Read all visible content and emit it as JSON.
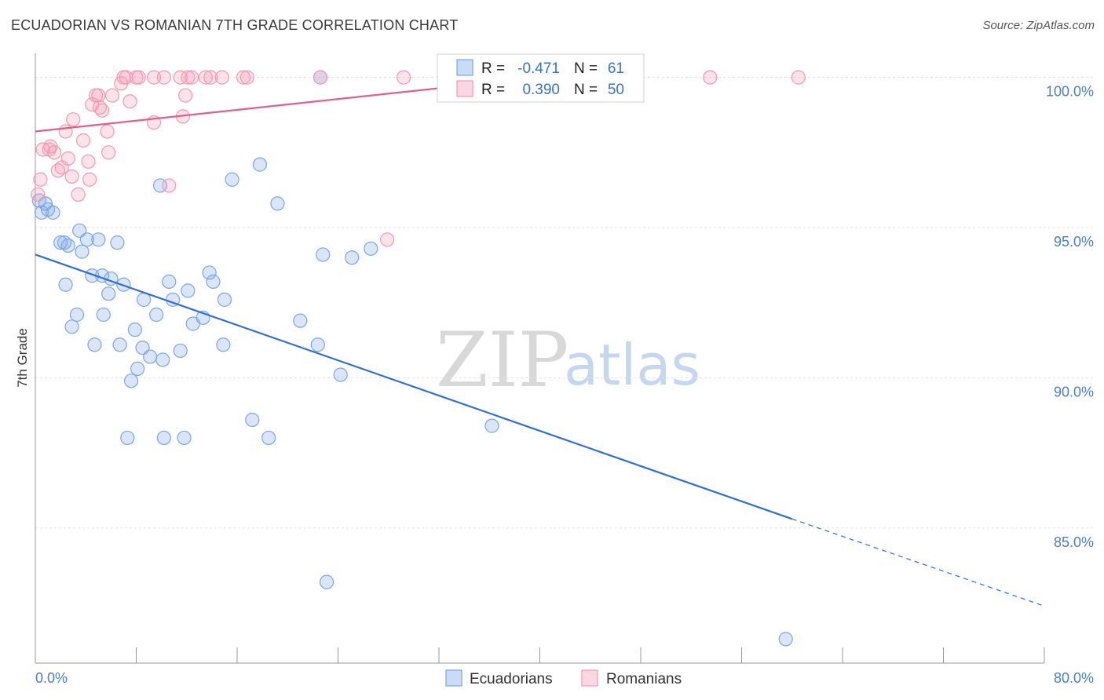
{
  "header": {
    "title": "ECUADORIAN VS ROMANIAN 7TH GRADE CORRELATION CHART",
    "source": "Source: ZipAtlas.com"
  },
  "chart_data": {
    "type": "scatter",
    "ylabel": "7th Grade",
    "xlim": [
      0,
      80
    ],
    "ylim": [
      80.5,
      100.8
    ],
    "x_tick_labels": [
      "0.0%",
      "80.0%"
    ],
    "y_ticks": [
      {
        "value": 100,
        "label": "100.0%"
      },
      {
        "value": 95,
        "label": "95.0%"
      },
      {
        "value": 90,
        "label": "90.0%"
      },
      {
        "value": 85,
        "label": "85.0%"
      }
    ],
    "grid": true,
    "watermark": {
      "zip": "ZIP",
      "atlas": "atlas"
    },
    "legend": {
      "r_label": "R =",
      "n_label": "N =",
      "entries": [
        {
          "r": "-0.471",
          "n": "61",
          "color": "#7aa7e6"
        },
        {
          "r": "0.390",
          "n": "50",
          "color": "#f29ab5"
        }
      ]
    },
    "series": [
      {
        "name": "Ecuadorians",
        "color": "#7aa7e6",
        "line_color": "#2f6fd1",
        "trend": {
          "x0": 0,
          "y0": 94.1,
          "x1": 60,
          "y1": 85.3,
          "dash_to_x": 80,
          "dash_to_y": 82.4
        },
        "points": [
          [
            0.3,
            95.9
          ],
          [
            0.5,
            95.5
          ],
          [
            1.0,
            95.6
          ],
          [
            1.4,
            95.5
          ],
          [
            0.8,
            95.8
          ],
          [
            2.0,
            94.5
          ],
          [
            2.6,
            94.4
          ],
          [
            3.5,
            94.9
          ],
          [
            3.7,
            94.2
          ],
          [
            4.1,
            94.6
          ],
          [
            5.0,
            94.6
          ],
          [
            6.5,
            94.5
          ],
          [
            2.3,
            94.5
          ],
          [
            2.4,
            93.1
          ],
          [
            4.5,
            93.4
          ],
          [
            5.3,
            93.4
          ],
          [
            6.0,
            93.3
          ],
          [
            7.0,
            93.1
          ],
          [
            5.8,
            92.8
          ],
          [
            3.3,
            92.1
          ],
          [
            2.9,
            91.7
          ],
          [
            5.4,
            92.1
          ],
          [
            8.6,
            92.6
          ],
          [
            9.6,
            92.1
          ],
          [
            10.6,
            93.2
          ],
          [
            10.9,
            92.6
          ],
          [
            12.1,
            92.9
          ],
          [
            13.8,
            93.5
          ],
          [
            14.1,
            93.2
          ],
          [
            15.0,
            92.6
          ],
          [
            12.5,
            91.8
          ],
          [
            13.3,
            92.0
          ],
          [
            4.7,
            91.1
          ],
          [
            6.7,
            91.1
          ],
          [
            7.9,
            91.6
          ],
          [
            8.5,
            91.0
          ],
          [
            11.5,
            90.9
          ],
          [
            14.9,
            91.1
          ],
          [
            9.1,
            90.7
          ],
          [
            10.1,
            90.6
          ],
          [
            8.1,
            90.3
          ],
          [
            7.6,
            89.9
          ],
          [
            21.0,
            91.9
          ],
          [
            22.4,
            91.1
          ],
          [
            24.2,
            90.1
          ],
          [
            17.2,
            88.6
          ],
          [
            18.5,
            88.0
          ],
          [
            7.3,
            88.0
          ],
          [
            10.2,
            88.0
          ],
          [
            11.8,
            88.0
          ],
          [
            36.2,
            88.4
          ],
          [
            9.9,
            96.4
          ],
          [
            15.6,
            96.6
          ],
          [
            17.8,
            97.1
          ],
          [
            19.2,
            95.8
          ],
          [
            22.8,
            94.1
          ],
          [
            25.1,
            94.0
          ],
          [
            26.6,
            94.3
          ],
          [
            22.6,
            100.0
          ],
          [
            23.1,
            83.2
          ],
          [
            59.5,
            81.3
          ]
        ]
      },
      {
        "name": "Romanians",
        "color": "#f29ab5",
        "line_color": "#e0608c",
        "trend": {
          "x0": 0,
          "y0": 98.2,
          "x1": 40,
          "y1": 100.0
        },
        "points": [
          [
            0.2,
            96.1
          ],
          [
            0.4,
            96.6
          ],
          [
            0.6,
            97.6
          ],
          [
            1.1,
            97.6
          ],
          [
            1.5,
            97.5
          ],
          [
            1.2,
            97.7
          ],
          [
            1.8,
            96.9
          ],
          [
            2.1,
            97.0
          ],
          [
            2.6,
            97.3
          ],
          [
            2.9,
            96.7
          ],
          [
            3.4,
            96.1
          ],
          [
            4.2,
            97.2
          ],
          [
            4.3,
            96.6
          ],
          [
            5.8,
            97.5
          ],
          [
            3.0,
            98.6
          ],
          [
            2.4,
            98.2
          ],
          [
            3.8,
            97.9
          ],
          [
            5.7,
            98.2
          ],
          [
            4.5,
            99.1
          ],
          [
            4.8,
            99.4
          ],
          [
            5.0,
            99.4
          ],
          [
            5.3,
            98.9
          ],
          [
            6.1,
            99.4
          ],
          [
            7.5,
            99.2
          ],
          [
            6.8,
            99.8
          ],
          [
            7.0,
            100.0
          ],
          [
            7.2,
            100.0
          ],
          [
            8.0,
            100.0
          ],
          [
            9.4,
            100.0
          ],
          [
            10.2,
            100.0
          ],
          [
            11.5,
            100.0
          ],
          [
            12.1,
            100.0
          ],
          [
            12.4,
            100.0
          ],
          [
            13.5,
            100.0
          ],
          [
            13.9,
            100.0
          ],
          [
            14.8,
            100.0
          ],
          [
            16.5,
            100.0
          ],
          [
            16.8,
            100.0
          ],
          [
            22.6,
            100.0
          ],
          [
            29.2,
            100.0
          ],
          [
            32.5,
            100.0
          ],
          [
            53.5,
            100.0
          ],
          [
            60.5,
            100.0
          ],
          [
            9.4,
            98.5
          ],
          [
            11.7,
            98.7
          ],
          [
            11.9,
            99.4
          ],
          [
            10.6,
            96.4
          ],
          [
            27.9,
            94.6
          ],
          [
            8.2,
            100.0
          ],
          [
            5.1,
            99.0
          ]
        ]
      }
    ]
  }
}
